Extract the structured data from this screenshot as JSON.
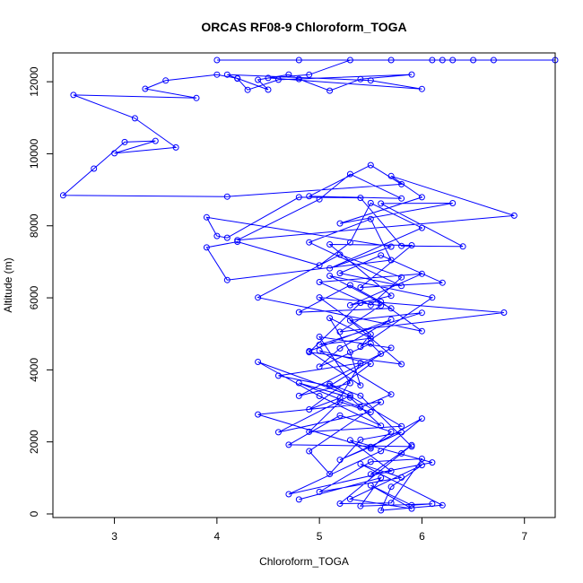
{
  "chart_data": {
    "type": "scatter",
    "title": "ORCAS RF08-9 Chloroform_TOGA",
    "xlabel": "Chloroform_TOGA",
    "ylabel": "Altitude (m)",
    "xlim": [
      2.4,
      7.3
    ],
    "ylim": [
      -100,
      12800
    ],
    "xticks": [
      3,
      4,
      5,
      6,
      7
    ],
    "yticks": [
      0,
      2000,
      4000,
      6000,
      8000,
      10000,
      12000
    ],
    "xtick_labels": [
      "3",
      "4",
      "5",
      "6",
      "7"
    ],
    "ytick_labels": [
      "0",
      "2000",
      "4000",
      "6000",
      "8000",
      "10000",
      "12000"
    ],
    "grid": false,
    "connected": true,
    "marker": "open-circle",
    "color": "#0000ff",
    "series": [
      {
        "x": [
          4.8,
          5.6,
          5.4,
          6.1,
          5.9,
          5.5,
          5.9,
          5.3,
          6.0,
          5.7,
          5.6,
          6.2,
          5.4,
          5.8,
          5.0,
          5.5,
          6.0,
          5.7,
          5.2,
          5.8,
          5.9,
          5.5,
          6.1,
          5.3,
          5.7,
          4.7,
          5.6,
          6.0,
          5.5,
          5.2,
          5.8,
          5.4,
          5.1,
          4.9,
          5.6,
          4.4,
          5.5,
          5.7,
          5.2,
          4.7,
          5.9,
          5.4,
          5.1,
          5.8,
          4.9,
          5.2,
          5.5,
          4.6,
          5.3,
          4.4,
          5.0,
          5.6,
          5.3,
          4.8,
          5.4,
          5.7,
          5.0,
          5.5,
          4.9,
          5.2,
          5.4,
          4.6,
          5.1,
          5.7,
          5.0,
          5.3,
          4.8,
          5.6,
          5.5,
          5.0,
          5.2,
          5.7,
          4.9,
          5.4,
          5.3,
          5.1,
          5.5,
          5.0,
          6.0,
          5.3,
          5.8,
          4.9,
          5.4,
          5.6,
          5.2,
          6.8,
          5.0,
          5.5,
          5.4,
          6.1,
          5.1,
          5.7,
          4.8,
          5.3,
          5.6,
          6.0,
          4.4,
          5.2,
          5.8,
          5.5,
          5.0,
          6.0,
          5.3,
          5.7,
          5.1,
          5.9,
          5.4,
          6.2,
          5.6,
          5.2,
          5.8,
          4.9,
          5.5,
          5.7,
          4.1,
          3.9,
          4.2,
          5.0,
          5.3,
          5.5,
          6.0,
          5.1,
          5.7,
          3.9,
          4.0,
          4.1,
          4.8,
          5.4,
          5.8,
          6.4,
          5.6,
          6.3,
          5.2,
          6.0,
          5.7,
          6.9,
          4.2,
          5.0,
          5.3,
          5.8,
          4.9,
          5.5,
          5.8,
          4.1,
          2.5,
          2.8,
          3.1,
          3.4,
          3.0,
          3.6,
          3.2,
          2.6,
          3.8,
          3.3,
          3.5,
          4.0,
          4.2,
          4.5,
          4.4,
          4.7,
          4.8,
          5.1,
          5.4,
          5.9,
          4.6,
          4.3,
          4.2,
          4.1,
          5.5,
          6.0,
          4.5,
          4.9,
          5.3,
          6.1,
          6.3,
          6.5,
          6.7,
          7.3,
          6.2,
          5.7,
          4.8,
          4.0
        ]
      }
    ]
  }
}
